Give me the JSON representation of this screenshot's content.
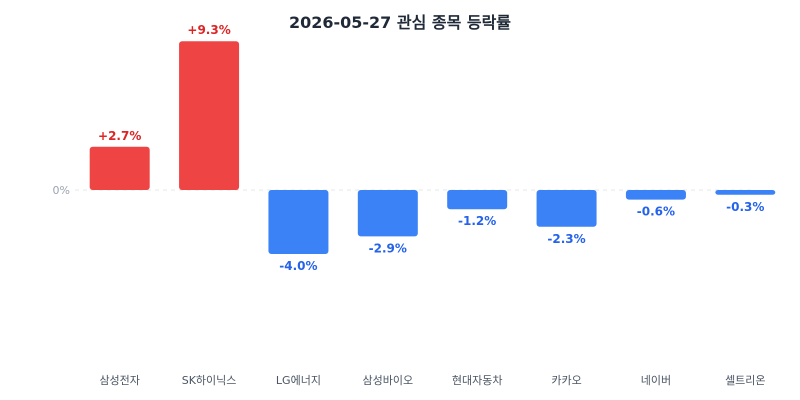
{
  "chart_data": {
    "type": "bar",
    "title": "2026-05-27 관심 종목 등락률",
    "zero_label": "0%",
    "categories": [
      "삼성전자",
      "SK하이닉스",
      "LG에너지",
      "삼성바이오",
      "현대자동차",
      "카카오",
      "네이버",
      "셀트리온"
    ],
    "values": [
      2.7,
      9.3,
      -4.0,
      -2.9,
      -1.2,
      -2.3,
      -0.6,
      -0.3
    ],
    "value_labels": [
      "+2.7%",
      "+9.3%",
      "-4.0%",
      "-2.9%",
      "-1.2%",
      "-2.3%",
      "-0.6%",
      "-0.3%"
    ],
    "ylim": [
      -10,
      10
    ],
    "grid": false,
    "zero_line": "dashed",
    "colors": {
      "positive": "#ef4444",
      "negative": "#3b82f6",
      "positive_text": "#dc2626",
      "negative_text": "#2563eb",
      "zero_line": "#e5e7eb",
      "title": "#1f2937",
      "category_text": "#4b5563",
      "axis_text": "#9ca3af"
    }
  }
}
